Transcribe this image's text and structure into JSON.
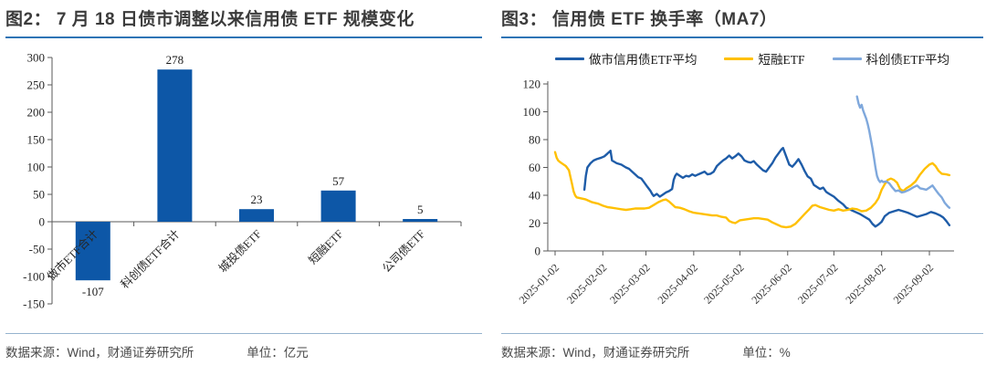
{
  "figures": [
    {
      "title": "图2： 7 月 18 日债市调整以来信用债 ETF 规模变化",
      "source": "数据来源：Wind，财通证券研究所",
      "unit": "单位：亿元"
    },
    {
      "title": "图3： 信用债 ETF 换手率（MA7）",
      "source": "数据来源：Wind，财通证券研究所",
      "unit": "单位：%"
    }
  ],
  "colors": {
    "title_underline": "#2E74B5",
    "footer_divider": "#95B3CE",
    "bar_blue": "#0D57A7",
    "dark_blue_line": "#1E5CA8",
    "yellow_line": "#FFC000",
    "light_blue_line": "#7FA8DC",
    "axis": "#595959"
  },
  "chart_data": [
    {
      "type": "bar",
      "title": "图2： 7 月 18 日债市调整以来信用债 ETF 规模变化",
      "categories": [
        "做市ETF合计",
        "科创债ETF合计",
        "城投债ETF",
        "短融ETF",
        "公司债ETF"
      ],
      "values": [
        -107,
        278,
        23,
        57,
        5
      ],
      "data_labels": [
        "-107",
        "278",
        "23",
        "57",
        "5"
      ],
      "ylim": [
        -150,
        300
      ],
      "yticks": [
        300,
        250,
        200,
        150,
        100,
        50,
        0,
        -50,
        -100,
        -150
      ],
      "grid": false,
      "bar_color": "#0D57A7",
      "unit": "亿元"
    },
    {
      "type": "line",
      "title": "图3： 信用债 ETF 换手率（MA7）",
      "ylim": [
        0,
        120
      ],
      "yticks": [
        0,
        20,
        40,
        60,
        80,
        100,
        120
      ],
      "grid": false,
      "legend_position": "top",
      "unit": "%",
      "x_start_date": "2025-01-02",
      "x_tick_labels": [
        "2025-01-02",
        "2025-02-02",
        "2025-03-02",
        "2025-04-02",
        "2025-05-02",
        "2025-06-02",
        "2025-07-02",
        "2025-08-02",
        "2025-09-02"
      ],
      "x_tick_days": [
        0,
        31,
        59,
        90,
        120,
        151,
        181,
        212,
        243
      ],
      "series": [
        {
          "name": "做市信用债ETF平均",
          "color": "#1E5CA8",
          "points": [
            [
              19,
              44
            ],
            [
              20,
              54
            ],
            [
              21,
              60
            ],
            [
              23,
              63
            ],
            [
              25,
              65
            ],
            [
              27,
              66
            ],
            [
              30,
              67
            ],
            [
              32,
              68
            ],
            [
              34,
              70
            ],
            [
              36,
              72
            ],
            [
              37,
              65
            ],
            [
              40,
              63
            ],
            [
              43,
              62
            ],
            [
              46,
              60
            ],
            [
              48,
              59
            ],
            [
              50,
              57
            ],
            [
              52,
              55
            ],
            [
              54,
              53
            ],
            [
              56,
              52
            ],
            [
              58,
              49
            ],
            [
              60,
              46
            ],
            [
              62,
              43
            ],
            [
              63,
              41
            ],
            [
              64,
              39.5
            ],
            [
              66,
              41
            ],
            [
              68,
              39
            ],
            [
              70,
              40.5
            ],
            [
              72,
              42
            ],
            [
              74,
              43
            ],
            [
              76,
              44.5
            ],
            [
              77,
              51
            ],
            [
              78,
              54
            ],
            [
              79,
              55.5
            ],
            [
              81,
              54
            ],
            [
              83,
              52.5
            ],
            [
              85,
              54
            ],
            [
              87,
              53.5
            ],
            [
              89,
              55
            ],
            [
              91,
              54
            ],
            [
              93,
              55
            ],
            [
              95,
              56
            ],
            [
              97,
              57
            ],
            [
              99,
              55
            ],
            [
              101,
              55.5
            ],
            [
              103,
              57
            ],
            [
              105,
              61
            ],
            [
              107,
              63
            ],
            [
              109,
              65
            ],
            [
              111,
              66.5
            ],
            [
              113,
              68.5
            ],
            [
              115,
              66.5
            ],
            [
              117,
              68
            ],
            [
              119,
              70
            ],
            [
              121,
              68
            ],
            [
              123,
              65
            ],
            [
              125,
              64
            ],
            [
              127,
              63.5
            ],
            [
              129,
              64.5
            ],
            [
              131,
              62
            ],
            [
              133,
              60
            ],
            [
              135,
              58
            ],
            [
              137,
              57
            ],
            [
              139,
              60
            ],
            [
              141,
              63
            ],
            [
              143,
              67
            ],
            [
              145,
              70
            ],
            [
              147,
              73
            ],
            [
              148,
              74
            ],
            [
              150,
              68
            ],
            [
              152,
              62
            ],
            [
              154,
              60.5
            ],
            [
              156,
              63
            ],
            [
              158,
              66
            ],
            [
              160,
              62
            ],
            [
              162,
              57.5
            ],
            [
              164,
              53.5
            ],
            [
              166,
              52
            ],
            [
              168,
              47.5
            ],
            [
              170,
              46
            ],
            [
              172,
              44.5
            ],
            [
              174,
              45.5
            ],
            [
              176,
              42.5
            ],
            [
              178,
              41
            ],
            [
              181,
              39
            ],
            [
              184,
              36
            ],
            [
              187,
              33.5
            ],
            [
              189,
              31
            ],
            [
              192,
              29.5
            ],
            [
              195,
              28
            ],
            [
              198,
              26.5
            ],
            [
              201,
              24.5
            ],
            [
              204,
              22.5
            ],
            [
              206,
              19.5
            ],
            [
              208,
              17.5
            ],
            [
              210,
              19
            ],
            [
              212,
              21
            ],
            [
              214,
              25
            ],
            [
              217,
              27.5
            ],
            [
              220,
              28.5
            ],
            [
              223,
              29.5
            ],
            [
              226,
              28.5
            ],
            [
              229,
              27.5
            ],
            [
              232,
              26
            ],
            [
              235,
              24.5
            ],
            [
              238,
              25.5
            ],
            [
              241,
              26.5
            ],
            [
              244,
              28
            ],
            [
              247,
              27
            ],
            [
              250,
              25.5
            ],
            [
              252,
              24
            ],
            [
              254,
              21.5
            ],
            [
              256,
              18.5
            ]
          ]
        },
        {
          "name": "短融ETF",
          "color": "#FFC000",
          "points": [
            [
              0,
              71
            ],
            [
              1,
              67
            ],
            [
              2,
              65
            ],
            [
              3,
              64
            ],
            [
              5,
              62.5
            ],
            [
              7,
              61
            ],
            [
              9,
              58
            ],
            [
              10,
              53
            ],
            [
              11,
              48
            ],
            [
              12,
              43
            ],
            [
              13,
              40
            ],
            [
              14,
              38.5
            ],
            [
              16,
              38
            ],
            [
              18,
              37.5
            ],
            [
              20,
              37
            ],
            [
              22,
              36
            ],
            [
              24,
              35
            ],
            [
              26,
              34.5
            ],
            [
              28,
              34
            ],
            [
              31,
              32.5
            ],
            [
              34,
              31.5
            ],
            [
              37,
              31
            ],
            [
              40,
              30.5
            ],
            [
              43,
              30
            ],
            [
              46,
              29.5
            ],
            [
              49,
              30
            ],
            [
              52,
              30.5
            ],
            [
              55,
              30.5
            ],
            [
              58,
              30.5
            ],
            [
              61,
              31
            ],
            [
              64,
              33
            ],
            [
              67,
              35
            ],
            [
              70,
              36.5
            ],
            [
              72,
              37
            ],
            [
              74,
              35.5
            ],
            [
              76,
              33.5
            ],
            [
              78,
              31.5
            ],
            [
              81,
              31
            ],
            [
              84,
              30
            ],
            [
              87,
              28.5
            ],
            [
              90,
              27.5
            ],
            [
              93,
              27
            ],
            [
              96,
              26.5
            ],
            [
              99,
              26
            ],
            [
              102,
              25.5
            ],
            [
              105,
              25.5
            ],
            [
              108,
              24.5
            ],
            [
              111,
              24
            ],
            [
              113,
              21.5
            ],
            [
              115,
              20.5
            ],
            [
              117,
              20
            ],
            [
              120,
              22
            ],
            [
              123,
              22.5
            ],
            [
              126,
              23
            ],
            [
              129,
              23.5
            ],
            [
              132,
              23.5
            ],
            [
              135,
              23
            ],
            [
              138,
              22.5
            ],
            [
              141,
              20.5
            ],
            [
              144,
              19
            ],
            [
              147,
              17.5
            ],
            [
              150,
              17
            ],
            [
              153,
              17.5
            ],
            [
              156,
              19.5
            ],
            [
              159,
              23
            ],
            [
              162,
              26.5
            ],
            [
              165,
              30
            ],
            [
              167,
              32.5
            ],
            [
              169,
              33
            ],
            [
              172,
              31.5
            ],
            [
              175,
              30.5
            ],
            [
              178,
              29.5
            ],
            [
              181,
              29
            ],
            [
              184,
              30
            ],
            [
              187,
              29
            ],
            [
              190,
              29.5
            ],
            [
              193,
              30.5
            ],
            [
              196,
              30
            ],
            [
              199,
              28.5
            ],
            [
              202,
              29
            ],
            [
              205,
              31
            ],
            [
              208,
              34.5
            ],
            [
              210,
              38
            ],
            [
              212,
              44
            ],
            [
              214,
              48
            ],
            [
              216,
              51
            ],
            [
              218,
              52
            ],
            [
              220,
              51
            ],
            [
              222,
              49
            ],
            [
              224,
              44.5
            ],
            [
              226,
              43
            ],
            [
              228,
              45
            ],
            [
              231,
              47
            ],
            [
              234,
              50
            ],
            [
              237,
              55
            ],
            [
              240,
              59
            ],
            [
              243,
              62
            ],
            [
              245,
              63
            ],
            [
              247,
              61
            ],
            [
              249,
              57.5
            ],
            [
              251,
              55.5
            ],
            [
              254,
              55
            ],
            [
              256,
              54.5
            ]
          ]
        },
        {
          "name": "科创债ETF平均",
          "color": "#7FA8DC",
          "points": [
            [
              196,
              111
            ],
            [
              197,
              106
            ],
            [
              198,
              103
            ],
            [
              199,
              105
            ],
            [
              200,
              101
            ],
            [
              201,
              98
            ],
            [
              202,
              95
            ],
            [
              203,
              91
            ],
            [
              204,
              86
            ],
            [
              205,
              80
            ],
            [
              206,
              74
            ],
            [
              207,
              67
            ],
            [
              208,
              60
            ],
            [
              209,
              54
            ],
            [
              210,
              51
            ],
            [
              211,
              49.5
            ],
            [
              212,
              50.5
            ],
            [
              213,
              49.5
            ],
            [
              215,
              50
            ],
            [
              217,
              48.5
            ],
            [
              219,
              45.5
            ],
            [
              221,
              43
            ],
            [
              223,
              43.5
            ],
            [
              225,
              42
            ],
            [
              227,
              42.5
            ],
            [
              230,
              44
            ],
            [
              233,
              46
            ],
            [
              235,
              47
            ],
            [
              237,
              45
            ],
            [
              239,
              44.5
            ],
            [
              241,
              44
            ],
            [
              243,
              45.5
            ],
            [
              245,
              47
            ],
            [
              247,
              44
            ],
            [
              249,
              41
            ],
            [
              251,
              38.5
            ],
            [
              253,
              34.5
            ],
            [
              255,
              32
            ],
            [
              256,
              31
            ]
          ]
        }
      ]
    }
  ]
}
